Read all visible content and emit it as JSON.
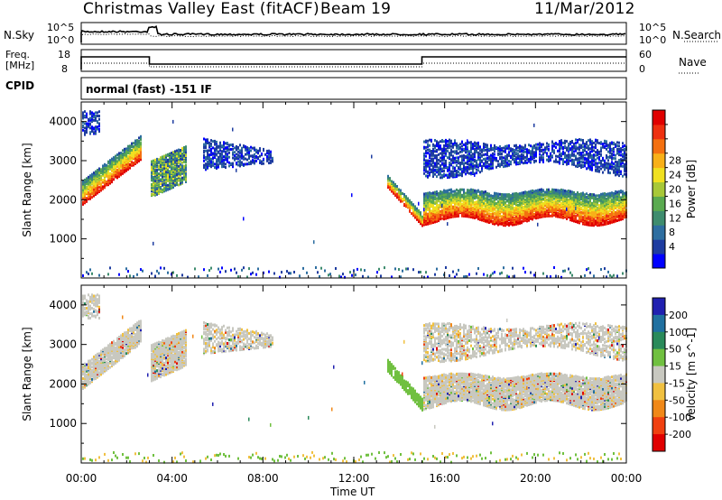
{
  "header": {
    "title": "Christmas Valley East (fitACF)",
    "beam": "Beam 19",
    "date": "11/Mar/2012"
  },
  "top_panels": {
    "nsky_label": "N.Sky",
    "nsky_ticks": [
      "10^5",
      "10^0"
    ],
    "nsearch_label": "N.Search",
    "freq_label_1": "Freq.",
    "freq_label_2": "[MHz]",
    "freq_ticks": [
      "18",
      "8"
    ],
    "nave_ticks": [
      "60",
      "0"
    ],
    "nave_label": "Nave",
    "cpid_label": "CPID",
    "cpid_value": "normal (fast) -151 IF"
  },
  "x_axis": {
    "label": "Time UT",
    "ticks": [
      "00:00",
      "04:00",
      "08:00",
      "12:00",
      "16:00",
      "20:00",
      "00:00"
    ]
  },
  "chart_data": [
    {
      "type": "heatmap",
      "panel": "power",
      "ylabel": "Slant Range [km]",
      "yticks": [
        1000,
        2000,
        3000,
        4000
      ],
      "ylim": [
        0,
        4500
      ],
      "xlim_hours": [
        0,
        24
      ],
      "colorbar": {
        "label": "Power [dB]",
        "ticks": [
          "4",
          "8",
          "12",
          "16",
          "20",
          "24",
          "28"
        ],
        "colors": [
          "#0000ff",
          "#1e3ca0",
          "#2e6ea0",
          "#3e8c6e",
          "#5aaa50",
          "#a8c838",
          "#f0e020",
          "#f8b018",
          "#f47010",
          "#ee3010",
          "#e00000"
        ]
      },
      "echo_bands": [
        {
          "t": [
            0.0,
            2.6
          ],
          "range": [
            1900,
            3400
          ],
          "level": "high"
        },
        {
          "t": [
            3.0,
            4.6
          ],
          "range": [
            2100,
            3300
          ],
          "level": "mid"
        },
        {
          "t": [
            5.3,
            8.4
          ],
          "range": [
            2800,
            3700
          ],
          "level": "low"
        },
        {
          "t": [
            13.4,
            15.0
          ],
          "range": [
            1200,
            2400
          ],
          "level": "high"
        },
        {
          "t": [
            15.0,
            24.0
          ],
          "range": [
            1500,
            2200
          ],
          "level": "high"
        },
        {
          "t": [
            15.0,
            24.0
          ],
          "range": [
            2800,
            3500
          ],
          "level": "low"
        }
      ]
    },
    {
      "type": "heatmap",
      "panel": "velocity",
      "ylabel": "Slant Range [km]",
      "yticks": [
        1000,
        2000,
        3000,
        4000
      ],
      "ylim": [
        0,
        4500
      ],
      "xlim_hours": [
        0,
        24
      ],
      "colorbar": {
        "label": "Velocity [m s^-1]",
        "ticks": [
          "200",
          "100",
          "50",
          "15",
          "-15",
          "-50",
          "-100",
          "-200"
        ],
        "colors": [
          "#2020b0",
          "#2070a0",
          "#2a8a5a",
          "#70c040",
          "#c8c8c0",
          "#f0c040",
          "#f08818",
          "#f04010",
          "#e00000"
        ]
      }
    }
  ]
}
